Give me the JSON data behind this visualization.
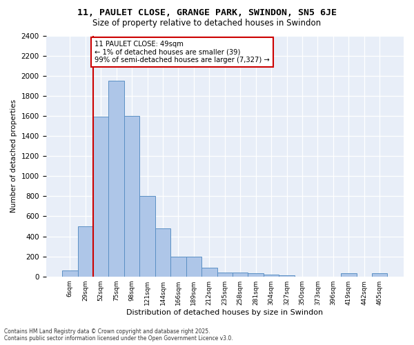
{
  "title": "11, PAULET CLOSE, GRANGE PARK, SWINDON, SN5 6JE",
  "subtitle": "Size of property relative to detached houses in Swindon",
  "xlabel": "Distribution of detached houses by size in Swindon",
  "ylabel": "Number of detached properties",
  "footer_line1": "Contains HM Land Registry data © Crown copyright and database right 2025.",
  "footer_line2": "Contains public sector information licensed under the Open Government Licence v3.0.",
  "annotation_title": "11 PAULET CLOSE: 49sqm",
  "annotation_line2": "← 1% of detached houses are smaller (39)",
  "annotation_line3": "99% of semi-detached houses are larger (7,327) →",
  "bar_values": [
    60,
    500,
    1590,
    1950,
    1600,
    800,
    480,
    200,
    200,
    90,
    40,
    40,
    30,
    20,
    10,
    0,
    0,
    0,
    30,
    0,
    30
  ],
  "bin_labels": [
    "6sqm",
    "29sqm",
    "52sqm",
    "75sqm",
    "98sqm",
    "121sqm",
    "144sqm",
    "166sqm",
    "189sqm",
    "212sqm",
    "235sqm",
    "258sqm",
    "281sqm",
    "304sqm",
    "327sqm",
    "350sqm",
    "373sqm",
    "396sqm",
    "419sqm",
    "442sqm",
    "465sqm"
  ],
  "bar_color": "#aec6e8",
  "bar_edge_color": "#5a8fc4",
  "bg_color": "#e8eef8",
  "grid_color": "#ffffff",
  "vline_x": 1.5,
  "vline_color": "#cc0000",
  "annotation_box_color": "#cc0000",
  "ylim": [
    0,
    2400
  ],
  "yticks": [
    0,
    200,
    400,
    600,
    800,
    1000,
    1200,
    1400,
    1600,
    1800,
    2000,
    2200,
    2400
  ]
}
